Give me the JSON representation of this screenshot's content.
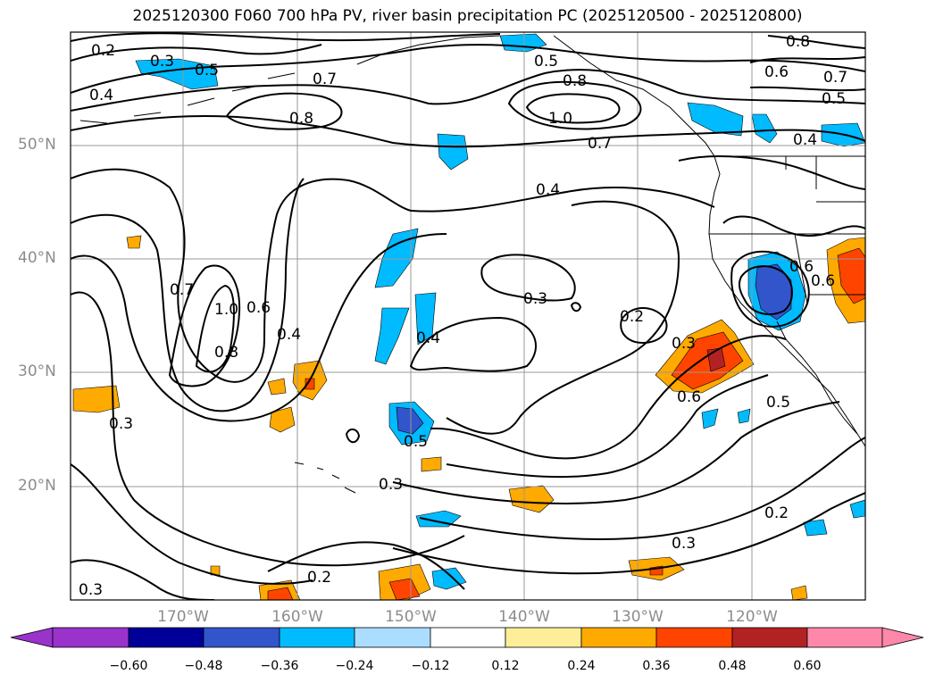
{
  "title": "2025120300 F060 700 hPa PV, river basin precipitation PC (2025120500 - 2025120800)",
  "lat_labels": [
    "50°N",
    "40°N",
    "30°N",
    "20°N"
  ],
  "lon_labels": [
    "170°W",
    "160°W",
    "150°W",
    "140°W",
    "130°W",
    "120°W"
  ],
  "contour_labels": [
    "0.2",
    "0.3",
    "0.5",
    "0.4",
    "0.7",
    "0.8",
    "0.5",
    "0.8",
    "1.0",
    "0.7",
    "0.8",
    "0.6",
    "0.7",
    "0.5",
    "0.4",
    "0.4",
    "0.7",
    "1.0",
    "0.6",
    "0.8",
    "0.4",
    "0.3",
    "0.4",
    "0.2",
    "0.3",
    "0.6",
    "0.5",
    "0.6",
    "0.5",
    "0.3",
    "0.3",
    "0.2",
    "0.3",
    "0.2",
    "0.3",
    "0.6"
  ],
  "colorbar": {
    "ticks": [
      "−0.60",
      "−0.48",
      "−0.36",
      "−0.24",
      "−0.12",
      "0.12",
      "0.24",
      "0.36",
      "0.48",
      "0.60"
    ],
    "colors": [
      "#9933cc",
      "#000099",
      "#3355cc",
      "#00bbff",
      "#aaddff",
      "#ffffff",
      "#ffee99",
      "#ffaa00",
      "#ff4400",
      "#b22222",
      "#ff88aa"
    ]
  }
}
